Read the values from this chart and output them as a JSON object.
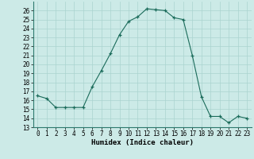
{
  "xlabel": "Humidex (Indice chaleur)",
  "x": [
    0,
    1,
    2,
    3,
    4,
    5,
    6,
    7,
    8,
    9,
    10,
    11,
    12,
    13,
    14,
    15,
    16,
    17,
    18,
    19,
    20,
    21,
    22,
    23
  ],
  "y": [
    16.5,
    16.2,
    15.2,
    15.2,
    15.2,
    15.2,
    17.5,
    19.3,
    21.2,
    23.3,
    24.8,
    25.3,
    26.2,
    26.1,
    26.0,
    25.2,
    25.0,
    21.0,
    16.4,
    14.2,
    14.2,
    13.5,
    14.2,
    14.0
  ],
  "line_color": "#1a6b5a",
  "marker": "+",
  "bg_color": "#cceae7",
  "grid_color": "#aad4d0",
  "ylim": [
    13,
    27
  ],
  "xlim": [
    -0.5,
    23.5
  ],
  "yticks": [
    13,
    14,
    15,
    16,
    17,
    18,
    19,
    20,
    21,
    22,
    23,
    24,
    25,
    26
  ],
  "xticks": [
    0,
    1,
    2,
    3,
    4,
    5,
    6,
    7,
    8,
    9,
    10,
    11,
    12,
    13,
    14,
    15,
    16,
    17,
    18,
    19,
    20,
    21,
    22,
    23
  ],
  "label_fontsize": 6.5,
  "tick_fontsize": 5.5
}
